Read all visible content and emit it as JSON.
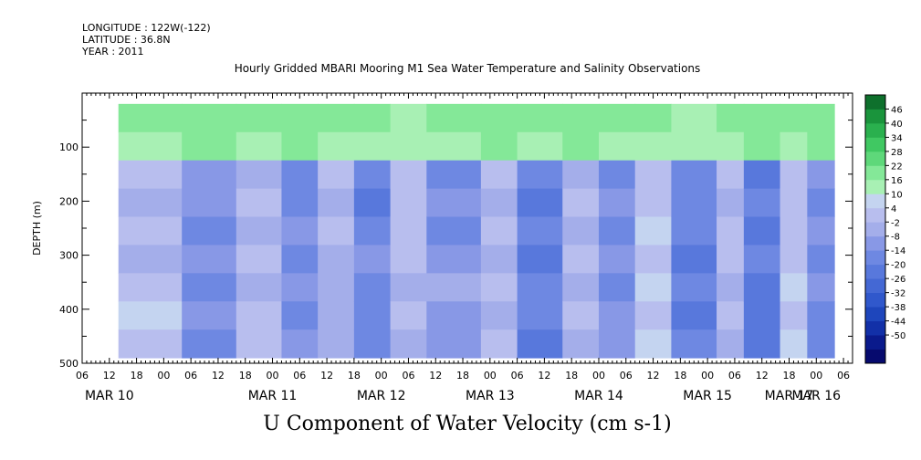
{
  "header": {
    "longitude": "LONGITUDE : 122W(-122)",
    "latitude": "LATITUDE : 36.8N",
    "year": "YEAR : 2011"
  },
  "chart_data": {
    "type": "heatmap",
    "title": "Hourly Gridded MBARI Mooring M1 Sea Water Temperature and Salinity Observations",
    "xlabel": "U Component of Water Velocity (cm s-1)",
    "ylabel": "DEPTH (m)",
    "x_start": "2011-03-10 06:00",
    "x_end": "2011-03-17 08:00",
    "x_tick_labels": [
      "06",
      "12",
      "18",
      "00",
      "06",
      "12",
      "18",
      "00",
      "06",
      "12",
      "18",
      "00",
      "06",
      "12",
      "18",
      "00",
      "06",
      "12",
      "18",
      "00",
      "06",
      "12",
      "18",
      "00",
      "06",
      "12",
      "18",
      "00",
      "06"
    ],
    "x_day_labels": [
      "MAR 10",
      "MAR 11",
      "MAR 12",
      "MAR 13",
      "MAR 14",
      "MAR 15",
      "MAR 16",
      "MAR 17"
    ],
    "ylim": [
      500,
      0
    ],
    "y_ticks": [
      100,
      200,
      300,
      400,
      500
    ],
    "data_depth_range": [
      20,
      490
    ],
    "colorbar": {
      "levels": [
        -50,
        -44,
        -38,
        -32,
        -26,
        -20,
        -14,
        -8,
        -2,
        4,
        10,
        16,
        22,
        28,
        34,
        40,
        46
      ],
      "labels": [
        "46",
        "40",
        "34",
        "28",
        "22",
        "16",
        "10",
        "4",
        "-2",
        "-8",
        "-14",
        "-20",
        "-26",
        "-32",
        "-38",
        "-44",
        "-50"
      ],
      "colors_low_to_high": [
        "#060a6e",
        "#0a1a8c",
        "#1230a8",
        "#1e46bc",
        "#3058cc",
        "#4468d4",
        "#5878dc",
        "#6e88e2",
        "#8898e6",
        "#a4aeea",
        "#b8beee",
        "#c4d4f0",
        "#a8f0b4",
        "#84e898",
        "#5ed87a",
        "#40c862",
        "#2ab04e",
        "#1a943c",
        "#0e702c"
      ]
    },
    "time_bands": [
      {
        "start": 0,
        "end": 8,
        "value": 16
      },
      {
        "start": 8,
        "end": 22,
        "value": 6
      },
      {
        "start": 22,
        "end": 34,
        "value": -8
      },
      {
        "start": 34,
        "end": 44,
        "value": 4
      },
      {
        "start": 44,
        "end": 52,
        "value": -10
      },
      {
        "start": 52,
        "end": 60,
        "value": 2
      },
      {
        "start": 60,
        "end": 68,
        "value": -12
      },
      {
        "start": 68,
        "end": 76,
        "value": 6
      },
      {
        "start": 76,
        "end": 88,
        "value": -6
      },
      {
        "start": 88,
        "end": 96,
        "value": 4
      },
      {
        "start": 96,
        "end": 106,
        "value": -14
      },
      {
        "start": 106,
        "end": 114,
        "value": 2
      },
      {
        "start": 114,
        "end": 122,
        "value": -8
      },
      {
        "start": 122,
        "end": 130,
        "value": 8
      },
      {
        "start": 130,
        "end": 140,
        "value": -12
      },
      {
        "start": 140,
        "end": 146,
        "value": 4
      },
      {
        "start": 146,
        "end": 154,
        "value": -16
      },
      {
        "start": 154,
        "end": 160,
        "value": 8
      },
      {
        "start": 160,
        "end": 172,
        "value": -10
      },
      {
        "start": 172,
        "end": 180,
        "value": 4
      },
      {
        "start": 180,
        "end": 190,
        "value": -6
      },
      {
        "start": 190,
        "end": 198,
        "value": 8
      },
      {
        "start": 198,
        "end": 208,
        "value": -10
      },
      {
        "start": 208,
        "end": 214,
        "value": 6
      },
      {
        "start": 214,
        "end": 228,
        "value": -16
      },
      {
        "start": 228,
        "end": 236,
        "value": 4
      },
      {
        "start": 236,
        "end": 246,
        "value": -8
      },
      {
        "start": 246,
        "end": 256,
        "value": 10
      },
      {
        "start": 256,
        "end": 262,
        "value": -4
      }
    ],
    "surface_layer": {
      "depth_end": 90,
      "value": 24
    }
  }
}
